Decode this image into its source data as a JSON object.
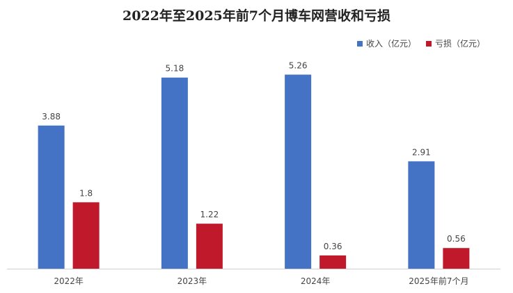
{
  "chart_data": {
    "type": "bar",
    "title": "2022年至2025年前7个月博车网营收和亏损",
    "categories": [
      "2022年",
      "2023年",
      "2024年",
      "2025年前7个月"
    ],
    "series": [
      {
        "name": "收入（亿元）",
        "values": [
          3.88,
          5.18,
          5.26,
          2.91
        ],
        "color": "#4472C4"
      },
      {
        "name": "亏损（亿元）",
        "values": [
          1.8,
          1.22,
          0.36,
          0.56
        ],
        "color": "#C0192B"
      }
    ],
    "xlabel": "",
    "ylabel": "",
    "ylim": [
      0,
      7
    ],
    "grid": false,
    "legend_position": "top-right"
  }
}
